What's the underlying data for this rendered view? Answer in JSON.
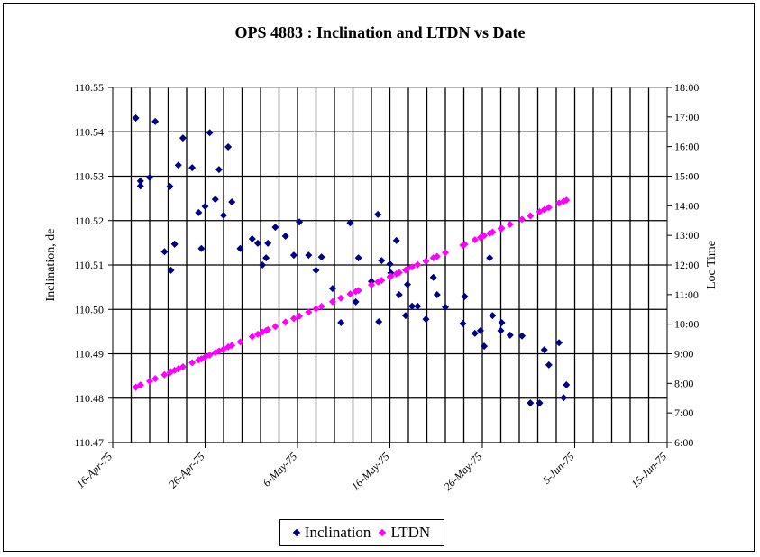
{
  "chart_data": {
    "type": "scatter",
    "title": "OPS 4883 : Inclination and LTDN  vs Date",
    "ylabel": "Inclination, de",
    "y2label": "Loc Time",
    "x_unit": "days since 16-Apr-75",
    "xlim": [
      0,
      60
    ],
    "ylim": [
      110.47,
      110.55
    ],
    "y2lim": [
      6,
      18
    ],
    "grid": true,
    "legend_position": "bottom",
    "x_tick_labels": [
      "16-Apr-75",
      "26-Apr-75",
      "6-May-75",
      "16-May-75",
      "26-May-75",
      "5-Jun-75",
      "15-Jun-75"
    ],
    "y_tick_labels": [
      "110.47",
      "110.48",
      "110.49",
      "110.50",
      "110.51",
      "110.52",
      "110.53",
      "110.54",
      "110.55"
    ],
    "y2_tick_labels": [
      "6:00",
      "7:00",
      "8:00",
      "9:00",
      "10:00",
      "11:00",
      "12:00",
      "13:00",
      "14:00",
      "15:00",
      "16:00",
      "17:00",
      "18:00"
    ],
    "series": [
      {
        "name": "Inclination",
        "axis": "left",
        "color": "#000080",
        "x": [
          2.5,
          3.0,
          3.0,
          4.0,
          4.6,
          5.6,
          6.2,
          6.3,
          6.7,
          7.1,
          7.6,
          8.6,
          9.3,
          9.6,
          10.0,
          10.5,
          11.1,
          11.5,
          12.0,
          12.5,
          12.9,
          13.8,
          15.1,
          15.7,
          16.2,
          16.6,
          16.8,
          17.6,
          18.7,
          19.6,
          20.2,
          21.2,
          22.0,
          22.6,
          23.8,
          24.7,
          25.7,
          26.3,
          26.6,
          28.0,
          28.7,
          28.8,
          29.1,
          30.0,
          30.1,
          30.7,
          31.0,
          31.7,
          31.9,
          32.4,
          33.0,
          33.9,
          34.7,
          35.1,
          36.0,
          37.9,
          38.1,
          39.2,
          39.8,
          40.2,
          40.8,
          41.1,
          42.0,
          42.1,
          43.0,
          44.3,
          45.2,
          46.2,
          46.7,
          47.2,
          48.3,
          48.8,
          49.1
        ],
        "y": [
          110.5431,
          110.5278,
          110.5289,
          110.5297,
          110.5423,
          110.513,
          110.5277,
          110.5088,
          110.5147,
          110.5325,
          110.5386,
          110.5319,
          110.5218,
          110.5137,
          110.5232,
          110.5398,
          110.5248,
          110.5315,
          110.5212,
          110.5366,
          110.5242,
          110.5137,
          110.5159,
          110.5149,
          110.51,
          110.5116,
          110.5149,
          110.5185,
          110.5165,
          110.5122,
          110.5197,
          110.5122,
          110.5088,
          110.5118,
          110.5047,
          110.497,
          110.5195,
          110.5017,
          110.5116,
          110.5063,
          110.5214,
          110.4972,
          110.511,
          110.5102,
          110.5082,
          110.5155,
          110.5033,
          110.4986,
          110.5056,
          110.5007,
          110.5007,
          110.4978,
          110.5072,
          110.5033,
          110.5005,
          110.4968,
          110.5029,
          110.4946,
          110.4952,
          110.4917,
          110.5116,
          110.4986,
          110.4952,
          110.497,
          110.4942,
          110.494,
          110.4789,
          110.4789,
          110.4909,
          110.4875,
          110.4925,
          110.4801,
          110.483
        ]
      },
      {
        "name": "LTDN",
        "axis": "right",
        "color": "#FF00FF",
        "x": [
          2.5,
          3.0,
          3.0,
          4.0,
          4.6,
          5.6,
          6.2,
          6.3,
          6.7,
          7.1,
          7.6,
          8.6,
          9.3,
          9.6,
          10.0,
          10.5,
          11.1,
          11.5,
          12.0,
          12.5,
          12.9,
          13.8,
          15.1,
          15.7,
          16.2,
          16.6,
          16.8,
          17.6,
          18.7,
          19.6,
          20.2,
          21.2,
          22.0,
          22.6,
          23.8,
          24.7,
          25.7,
          26.3,
          26.6,
          28.0,
          28.7,
          28.8,
          29.1,
          30.0,
          30.1,
          30.7,
          31.0,
          31.7,
          31.9,
          32.4,
          33.0,
          33.9,
          34.7,
          35.1,
          36.0,
          37.9,
          38.1,
          39.2,
          39.8,
          40.2,
          40.8,
          41.1,
          42.0,
          42.1,
          43.0,
          44.3,
          45.2,
          46.2,
          46.7,
          47.2,
          48.3,
          48.8,
          49.1
        ],
        "y": [
          7.87,
          7.94,
          7.94,
          8.07,
          8.16,
          8.29,
          8.37,
          8.39,
          8.44,
          8.49,
          8.56,
          8.7,
          8.79,
          8.83,
          8.89,
          8.96,
          9.04,
          9.09,
          9.16,
          9.23,
          9.28,
          9.4,
          9.58,
          9.66,
          9.73,
          9.78,
          9.81,
          9.92,
          10.07,
          10.19,
          10.27,
          10.41,
          10.52,
          10.6,
          10.76,
          10.88,
          11.02,
          11.1,
          11.14,
          11.33,
          11.43,
          11.44,
          11.48,
          11.6,
          11.62,
          11.7,
          11.74,
          11.83,
          11.86,
          11.93,
          12.01,
          12.13,
          12.24,
          12.29,
          12.42,
          12.67,
          12.7,
          12.85,
          12.93,
          12.99,
          13.07,
          13.11,
          13.23,
          13.24,
          13.37,
          13.54,
          13.66,
          13.8,
          13.87,
          13.94,
          14.09,
          14.15,
          14.19
        ]
      }
    ]
  }
}
